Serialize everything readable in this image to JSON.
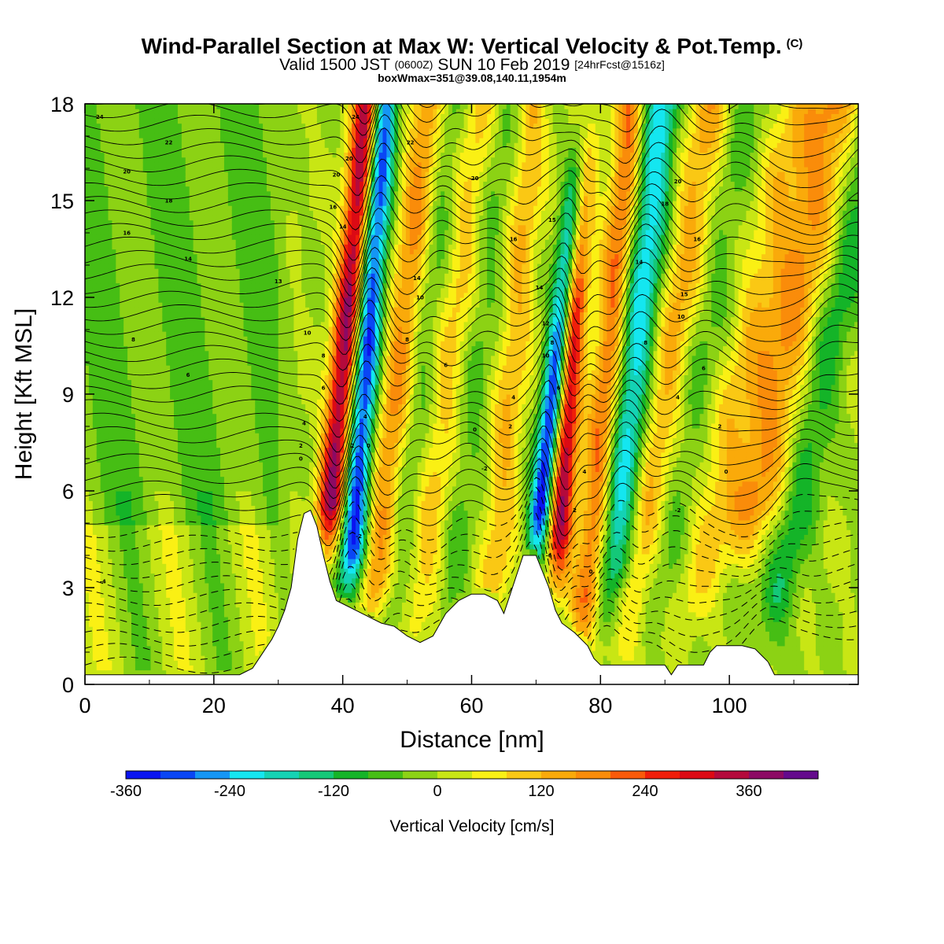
{
  "title": {
    "main": "Wind-Parallel Section at Max W: Vertical Velocity & Pot.Temp.",
    "copyright": "(C)",
    "valid_prefix": "Valid 1500 JST",
    "valid_utc": "(0600Z)",
    "valid_date": "SUN 10 Feb 2019",
    "forecast": "[24hrFcst@1516z]",
    "box_info": "boxWmax=351@39.08,140.11,1954m"
  },
  "chart_data": {
    "type": "heatmap",
    "xlabel": "Distance [nm]",
    "ylabel": "Height [Kft MSL]",
    "xlim": [
      0,
      120
    ],
    "ylim": [
      0,
      18
    ],
    "xticks": [
      0,
      20,
      40,
      60,
      80,
      100
    ],
    "yticks": [
      0,
      3,
      6,
      9,
      12,
      15,
      18
    ],
    "terrain_kft": [
      [
        0,
        0.3
      ],
      [
        4,
        0.3
      ],
      [
        8,
        0.3
      ],
      [
        12,
        0.3
      ],
      [
        16,
        0.3
      ],
      [
        20,
        0.3
      ],
      [
        24,
        0.3
      ],
      [
        26,
        0.5
      ],
      [
        27,
        0.8
      ],
      [
        28,
        1.1
      ],
      [
        29,
        1.4
      ],
      [
        30,
        1.8
      ],
      [
        31,
        2.3
      ],
      [
        32,
        3.0
      ],
      [
        33,
        4.5
      ],
      [
        34,
        5.3
      ],
      [
        35,
        5.4
      ],
      [
        36,
        4.9
      ],
      [
        37,
        4.0
      ],
      [
        38,
        3.2
      ],
      [
        39,
        2.6
      ],
      [
        40,
        2.5
      ],
      [
        42,
        2.3
      ],
      [
        44,
        2.1
      ],
      [
        46,
        1.9
      ],
      [
        48,
        1.8
      ],
      [
        50,
        1.5
      ],
      [
        52,
        1.3
      ],
      [
        54,
        1.5
      ],
      [
        56,
        2.2
      ],
      [
        58,
        2.6
      ],
      [
        60,
        2.8
      ],
      [
        62,
        2.8
      ],
      [
        64,
        2.6
      ],
      [
        65,
        2.2
      ],
      [
        66,
        2.8
      ],
      [
        67,
        3.4
      ],
      [
        68,
        4.0
      ],
      [
        70,
        4.0
      ],
      [
        71,
        3.5
      ],
      [
        72,
        3.0
      ],
      [
        73,
        2.3
      ],
      [
        74,
        1.9
      ],
      [
        76,
        1.6
      ],
      [
        78,
        1.2
      ],
      [
        79,
        0.8
      ],
      [
        80,
        0.6
      ],
      [
        82,
        0.6
      ],
      [
        86,
        0.6
      ],
      [
        90,
        0.6
      ],
      [
        91,
        0.3
      ],
      [
        92,
        0.6
      ],
      [
        96,
        0.6
      ],
      [
        97,
        1.0
      ],
      [
        98,
        1.2
      ],
      [
        100,
        1.2
      ],
      [
        102,
        1.2
      ],
      [
        104,
        1.1
      ],
      [
        105,
        0.9
      ],
      [
        106,
        0.7
      ],
      [
        107,
        0.3
      ],
      [
        112,
        0.3
      ],
      [
        120,
        0.3
      ]
    ],
    "w_bands": [
      {
        "x": 37.5,
        "slope": 0.45,
        "amp": 380,
        "width": 2.1,
        "zmin": 4.0
      },
      {
        "x": 41.5,
        "slope": 0.35,
        "amp": -330,
        "width": 2.1,
        "zmin": 2.5
      },
      {
        "x": 45.5,
        "slope": 0.55,
        "amp": 170,
        "width": 2.6,
        "zmin": 1.5
      },
      {
        "x": 49.0,
        "slope": 0.6,
        "amp": -70,
        "width": 2.5,
        "zmin": 1.0
      },
      {
        "x": 53.0,
        "slope": 0.6,
        "amp": 100,
        "width": 3.0,
        "zmin": 1.0
      },
      {
        "x": 57.5,
        "slope": 0.55,
        "amp": -60,
        "width": 2.6,
        "zmin": 1.0
      },
      {
        "x": 64.0,
        "slope": 0.4,
        "amp": 120,
        "width": 2.4,
        "zmin": 2.0
      },
      {
        "x": 70.0,
        "slope": 0.55,
        "amp": -370,
        "width": 1.8,
        "zmin": 3.8
      },
      {
        "x": 73.5,
        "slope": 0.3,
        "amp": 360,
        "width": 1.9,
        "zmin": 3.0
      },
      {
        "x": 78.5,
        "slope": 0.45,
        "amp": 210,
        "width": 2.3,
        "zmin": 1.0
      },
      {
        "x": 82.5,
        "slope": 0.5,
        "amp": -230,
        "width": 2.8,
        "zmin": 2.0
      },
      {
        "x": 86.0,
        "slope": 0.8,
        "amp": 140,
        "width": 3.2,
        "zmin": 1.0
      },
      {
        "x": 90.0,
        "slope": 0.9,
        "amp": -60,
        "width": 3.2,
        "zmin": 1.0
      },
      {
        "x": 96.0,
        "slope": 1.0,
        "amp": 80,
        "width": 3.2,
        "zmin": 1.5
      },
      {
        "x": 102.0,
        "slope": 1.0,
        "amp": 170,
        "width": 4.5,
        "zmin": 4.0
      },
      {
        "x": 109.0,
        "slope": 1.0,
        "amp": -110,
        "width": 3.0,
        "zmin": 1.0
      }
    ],
    "contour_labels": [
      {
        "x": 2.3,
        "y": 17.6,
        "text": "24"
      },
      {
        "x": 13.0,
        "y": 16.8,
        "text": "22"
      },
      {
        "x": 6.5,
        "y": 15.9,
        "text": "20"
      },
      {
        "x": 13.0,
        "y": 15.0,
        "text": "18"
      },
      {
        "x": 6.5,
        "y": 14.0,
        "text": "16"
      },
      {
        "x": 16.0,
        "y": 13.2,
        "text": "14"
      },
      {
        "x": 30.0,
        "y": 12.5,
        "text": "13"
      },
      {
        "x": 7.5,
        "y": 10.7,
        "text": "8"
      },
      {
        "x": 16.0,
        "y": 9.6,
        "text": "6"
      },
      {
        "x": 2.8,
        "y": 3.2,
        "text": "-4"
      },
      {
        "x": 42.0,
        "y": 17.6,
        "text": "24"
      },
      {
        "x": 41.0,
        "y": 16.3,
        "text": "20"
      },
      {
        "x": 39.0,
        "y": 15.8,
        "text": "20"
      },
      {
        "x": 38.5,
        "y": 14.8,
        "text": "16"
      },
      {
        "x": 40.0,
        "y": 14.2,
        "text": "14"
      },
      {
        "x": 34.5,
        "y": 10.9,
        "text": "10"
      },
      {
        "x": 37.0,
        "y": 10.2,
        "text": "8"
      },
      {
        "x": 37.0,
        "y": 9.2,
        "text": "6"
      },
      {
        "x": 34.0,
        "y": 8.1,
        "text": "4"
      },
      {
        "x": 33.5,
        "y": 7.4,
        "text": "2"
      },
      {
        "x": 33.5,
        "y": 7.0,
        "text": "0"
      },
      {
        "x": 43.5,
        "y": 8.3,
        "text": "4"
      },
      {
        "x": 41.5,
        "y": 7.4,
        "text": "2"
      },
      {
        "x": 44.0,
        "y": 7.4,
        "text": "0"
      },
      {
        "x": 42.5,
        "y": 4.6,
        "text": "-2"
      },
      {
        "x": 50.5,
        "y": 16.8,
        "text": "22"
      },
      {
        "x": 51.5,
        "y": 12.6,
        "text": "14"
      },
      {
        "x": 52.0,
        "y": 12.0,
        "text": "10"
      },
      {
        "x": 50.0,
        "y": 10.7,
        "text": "8"
      },
      {
        "x": 56.0,
        "y": 9.9,
        "text": "6"
      },
      {
        "x": 60.5,
        "y": 15.7,
        "text": "20"
      },
      {
        "x": 66.5,
        "y": 13.8,
        "text": "16"
      },
      {
        "x": 66.5,
        "y": 8.9,
        "text": "4"
      },
      {
        "x": 60.5,
        "y": 7.9,
        "text": "0"
      },
      {
        "x": 66.0,
        "y": 8.0,
        "text": "2"
      },
      {
        "x": 62.0,
        "y": 6.7,
        "text": "-2"
      },
      {
        "x": 72.5,
        "y": 14.4,
        "text": "15"
      },
      {
        "x": 70.5,
        "y": 12.3,
        "text": "14"
      },
      {
        "x": 71.5,
        "y": 11.2,
        "text": "12"
      },
      {
        "x": 72.5,
        "y": 10.6,
        "text": "8"
      },
      {
        "x": 71.5,
        "y": 10.2,
        "text": "10"
      },
      {
        "x": 73.5,
        "y": 9.2,
        "text": "6"
      },
      {
        "x": 72.0,
        "y": 4.0,
        "text": "-6"
      },
      {
        "x": 77.5,
        "y": 6.6,
        "text": "4"
      },
      {
        "x": 76.0,
        "y": 5.4,
        "text": "2"
      },
      {
        "x": 78.5,
        "y": 3.5,
        "text": "0"
      },
      {
        "x": 92.0,
        "y": 15.6,
        "text": "20"
      },
      {
        "x": 90.0,
        "y": 14.9,
        "text": "18"
      },
      {
        "x": 95.0,
        "y": 13.8,
        "text": "16"
      },
      {
        "x": 86.0,
        "y": 13.1,
        "text": "14"
      },
      {
        "x": 93.0,
        "y": 12.1,
        "text": "15"
      },
      {
        "x": 92.5,
        "y": 11.4,
        "text": "10"
      },
      {
        "x": 87.0,
        "y": 10.6,
        "text": "8"
      },
      {
        "x": 96.0,
        "y": 9.8,
        "text": "6"
      },
      {
        "x": 92.0,
        "y": 8.9,
        "text": "4"
      },
      {
        "x": 98.5,
        "y": 8.0,
        "text": "2"
      },
      {
        "x": 99.5,
        "y": 6.6,
        "text": "0"
      },
      {
        "x": 92.0,
        "y": 5.4,
        "text": "-2"
      }
    ],
    "colorbar": {
      "title": "Vertical Velocity [cm/s]",
      "min": -360,
      "step": 40,
      "colors": [
        "#0a14f0",
        "#0a46f5",
        "#1496f5",
        "#14e6f0",
        "#14d2b4",
        "#14c878",
        "#14b428",
        "#46be14",
        "#8cd214",
        "#c8e614",
        "#faf014",
        "#fac814",
        "#faaa0a",
        "#fa8c0a",
        "#fa5a0a",
        "#f01e0a",
        "#dc0a14",
        "#b40a3c",
        "#8c0a64",
        "#640a8c"
      ],
      "labels": [
        "-360",
        "-240",
        "-120",
        "0",
        "120",
        "240",
        "360"
      ],
      "label_values": [
        -360,
        -240,
        -120,
        0,
        120,
        240,
        360
      ]
    }
  }
}
